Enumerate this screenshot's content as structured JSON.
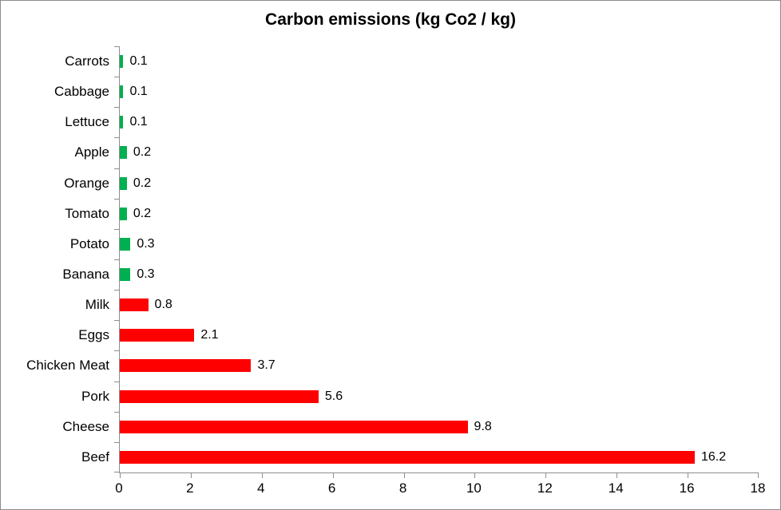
{
  "chart_data": {
    "type": "bar",
    "orientation": "horizontal",
    "title": "Carbon emissions (kg Co2 / kg)",
    "categories": [
      "Carrots",
      "Cabbage",
      "Lettuce",
      "Apple",
      "Orange",
      "Tomato",
      "Potato",
      "Banana",
      "Milk",
      "Eggs",
      "Chicken Meat",
      "Pork",
      "Cheese",
      "Beef"
    ],
    "values": [
      0.1,
      0.1,
      0.1,
      0.2,
      0.2,
      0.2,
      0.3,
      0.3,
      0.8,
      2.1,
      3.7,
      5.6,
      9.8,
      16.2
    ],
    "data_labels": [
      "0.1",
      "0.1",
      "0.1",
      "0.2",
      "0.2",
      "0.2",
      "0.3",
      "0.3",
      "0.8",
      "2.1",
      "3.7",
      "5.6",
      "9.8",
      "16.2"
    ],
    "bar_colors": [
      "#00B050",
      "#00B050",
      "#00B050",
      "#00B050",
      "#00B050",
      "#00B050",
      "#00B050",
      "#00B050",
      "#FF0000",
      "#FF0000",
      "#FF0000",
      "#FF0000",
      "#FF0000",
      "#FF0000"
    ],
    "xlabel": "",
    "ylabel": "",
    "xlim": [
      0,
      18
    ],
    "xticks": [
      "0",
      "2",
      "4",
      "6",
      "8",
      "10",
      "12",
      "14",
      "16",
      "18"
    ],
    "grid": false,
    "legend": false,
    "colors": {
      "low_emission_green": "#00B050",
      "high_emission_red": "#FF0000",
      "axis_gray": "#8E8E8E",
      "text_black": "#000000",
      "background": "#FFFFFF",
      "border_gray": "#8C8C8C"
    }
  }
}
